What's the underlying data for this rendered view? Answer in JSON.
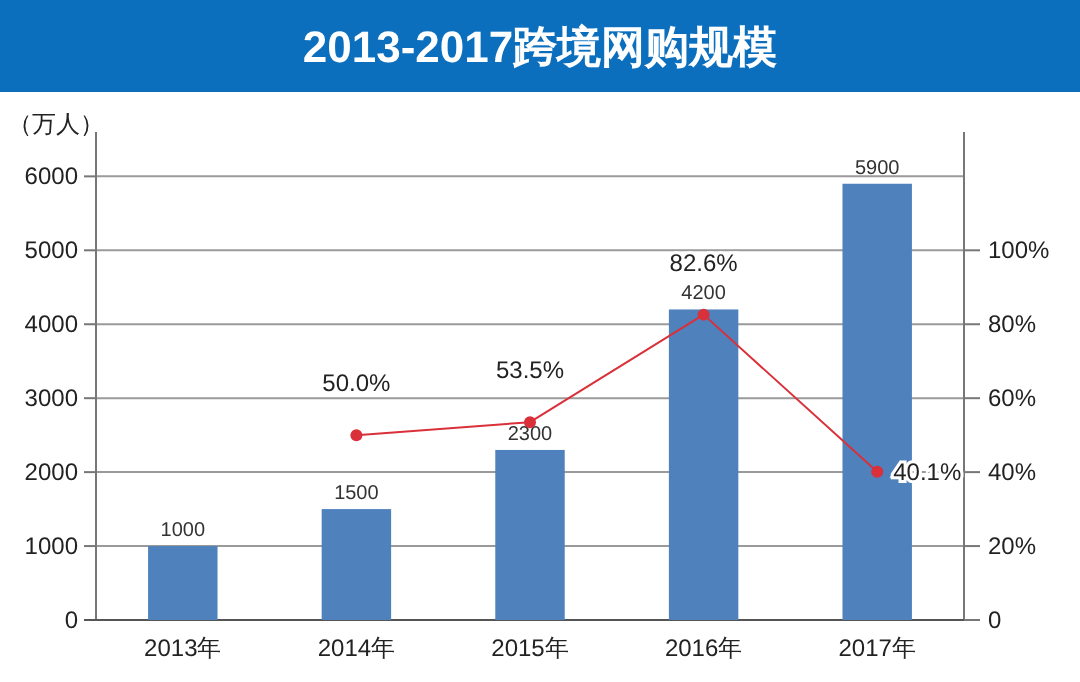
{
  "chart_data": {
    "type": "bar",
    "title": "2013-2017跨境网购规模",
    "ylabel": "（万人）",
    "categories": [
      "2013年",
      "2014年",
      "2015年",
      "2016年",
      "2017年"
    ],
    "series": [
      {
        "color": "#4f81bd",
        "values": [
          1000,
          1500,
          2300,
          4200,
          5900
        ],
        "value_labels": [
          "1000",
          "1500",
          "2300",
          "4200",
          "5900"
        ]
      },
      {
        "type": "line",
        "axis": "y2",
        "color": "#d9303a",
        "marker": "circle",
        "line_style": "solid",
        "values": [
          null,
          50.0,
          53.5,
          82.6,
          40.1
        ],
        "value_labels": [
          null,
          "50.0%",
          "53.5%",
          "82.6%",
          "40.1%"
        ]
      }
    ],
    "ylim": [
      0,
      6600
    ],
    "yticks": [
      0,
      1000,
      2000,
      3000,
      4000,
      5000,
      6000
    ],
    "y2lim": [
      0,
      132
    ],
    "y2ticks": [
      0,
      {
        "value": 20,
        "label": "20%"
      },
      {
        "value": 40,
        "label": "40%"
      },
      {
        "value": 60,
        "label": "60%"
      },
      {
        "value": 80,
        "label": "80%"
      },
      {
        "value": 100,
        "label": "100%"
      }
    ],
    "grid": "y"
  }
}
